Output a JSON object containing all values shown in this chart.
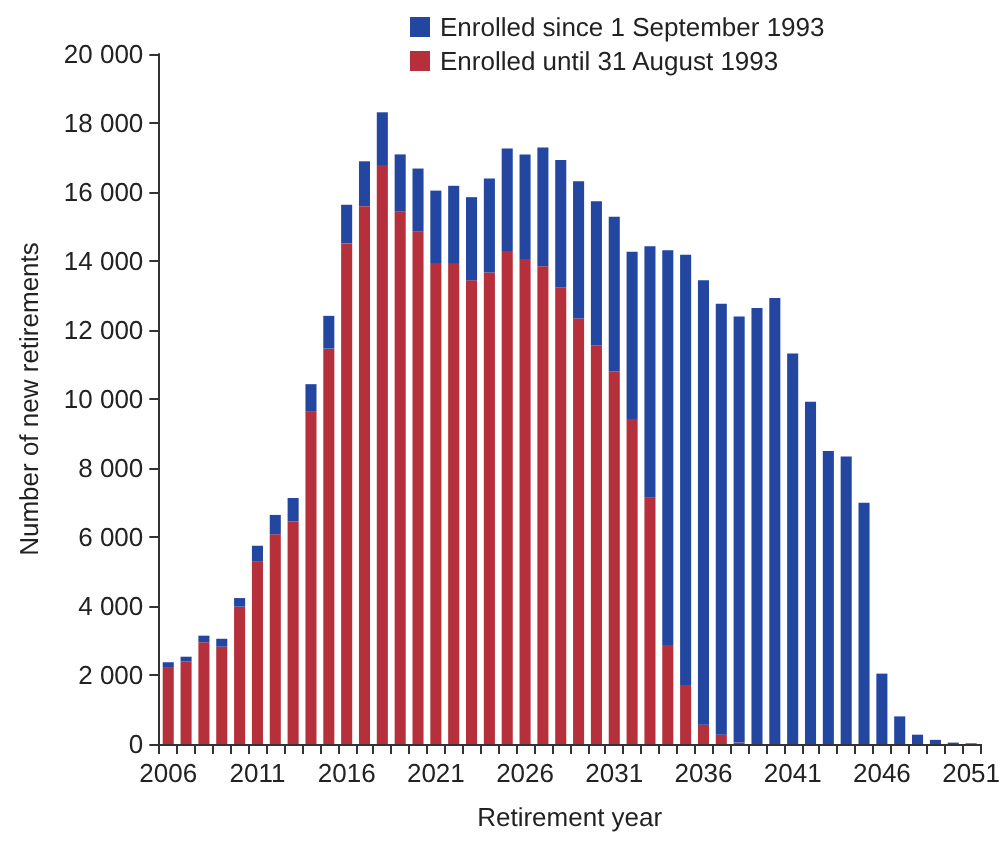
{
  "chart_data": {
    "type": "bar",
    "stacked": true,
    "xlabel": "Retirement year",
    "ylabel": "Number of new retirements",
    "categories": [
      "2006",
      null,
      null,
      null,
      null,
      "2011",
      null,
      null,
      null,
      null,
      "2016",
      null,
      null,
      null,
      null,
      "2021",
      null,
      null,
      null,
      null,
      "2026",
      null,
      null,
      null,
      null,
      "2031",
      null,
      null,
      null,
      null,
      "2036",
      null,
      null,
      null,
      null,
      "2041",
      null,
      null,
      null,
      null,
      "2046",
      null,
      null,
      null,
      null,
      "2051"
    ],
    "series": [
      {
        "name": "Enrolled until 31 August 1993",
        "color": "#b5303a",
        "values": [
          2230,
          2390,
          2950,
          2820,
          3980,
          5280,
          6080,
          6450,
          9630,
          11460,
          14510,
          15590,
          16780,
          15440,
          14860,
          13940,
          13940,
          13440,
          13670,
          14290,
          14060,
          13850,
          13240,
          12330,
          11560,
          10800,
          9420,
          7140,
          2870,
          1710,
          560,
          270,
          40,
          0,
          0,
          0,
          0,
          0,
          0,
          0,
          0,
          0,
          0,
          0,
          0,
          0
        ]
      },
      {
        "name": "Enrolled since 1 September 1993",
        "color": "#2346a0",
        "values": [
          140,
          140,
          190,
          230,
          250,
          470,
          560,
          680,
          800,
          950,
          1120,
          1300,
          1530,
          1650,
          1820,
          2100,
          2240,
          2410,
          2720,
          2970,
          3030,
          3440,
          3690,
          3980,
          4170,
          4480,
          4850,
          7290,
          11440,
          12470,
          12880,
          12490,
          12350,
          12640,
          12930,
          11320,
          9920,
          8490,
          8330,
          6990,
          2040,
          800,
          270,
          120,
          40,
          20
        ]
      }
    ],
    "ylim": [
      0,
      20000
    ],
    "yticks": [
      {
        "value": 0,
        "label": "0"
      },
      {
        "value": 2000,
        "label": "2 000"
      },
      {
        "value": 4000,
        "label": "4 000"
      },
      {
        "value": 6000,
        "label": "6 000"
      },
      {
        "value": 8000,
        "label": "8 000"
      },
      {
        "value": 10000,
        "label": "10 000"
      },
      {
        "value": 12000,
        "label": "12 000"
      },
      {
        "value": 14000,
        "label": "14 000"
      },
      {
        "value": 16000,
        "label": "16 000"
      },
      {
        "value": 18000,
        "label": "18 000"
      },
      {
        "value": 20000,
        "label": "20 000"
      }
    ],
    "grid": false,
    "legend": "top"
  }
}
